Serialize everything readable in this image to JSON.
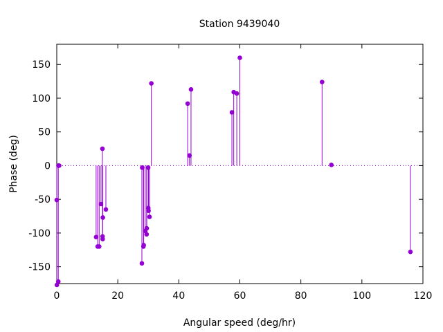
{
  "chart_data": {
    "type": "scatter",
    "title": "Station 9439040",
    "xlabel": "Angular speed (deg/hr)",
    "ylabel": "Phase (deg)",
    "xlim": [
      0,
      120
    ],
    "ylim": [
      -175,
      180
    ],
    "xticks": [
      0,
      20,
      40,
      60,
      80,
      100,
      120
    ],
    "yticks": [
      -150,
      -100,
      -50,
      0,
      50,
      100,
      150
    ],
    "grid": false,
    "zero_line": "dotted",
    "style": "impulses with point markers",
    "color": "#9400d3",
    "points": [
      {
        "x": 0.0,
        "y": -51
      },
      {
        "x": 0.04,
        "y": -177
      },
      {
        "x": 0.5,
        "y": -172
      },
      {
        "x": 0.55,
        "y": 0
      },
      {
        "x": 0.8,
        "y": 0
      },
      {
        "x": 12.9,
        "y": -106
      },
      {
        "x": 13.4,
        "y": -120
      },
      {
        "x": 13.9,
        "y": -120
      },
      {
        "x": 14.5,
        "y": -57
      },
      {
        "x": 14.96,
        "y": 25
      },
      {
        "x": 15.0,
        "y": -105
      },
      {
        "x": 15.04,
        "y": -109
      },
      {
        "x": 15.1,
        "y": -77
      },
      {
        "x": 16.1,
        "y": -65
      },
      {
        "x": 27.9,
        "y": -145
      },
      {
        "x": 28.0,
        "y": -3
      },
      {
        "x": 28.4,
        "y": -120
      },
      {
        "x": 28.5,
        "y": -118
      },
      {
        "x": 29.0,
        "y": -97
      },
      {
        "x": 29.5,
        "y": -93
      },
      {
        "x": 29.45,
        "y": -102
      },
      {
        "x": 29.96,
        "y": -3
      },
      {
        "x": 30.0,
        "y": -63
      },
      {
        "x": 30.08,
        "y": -67
      },
      {
        "x": 30.4,
        "y": -76
      },
      {
        "x": 31.0,
        "y": 122
      },
      {
        "x": 42.9,
        "y": 92
      },
      {
        "x": 43.5,
        "y": 15
      },
      {
        "x": 44.0,
        "y": 113
      },
      {
        "x": 57.4,
        "y": 79
      },
      {
        "x": 58.0,
        "y": 109
      },
      {
        "x": 59.0,
        "y": 107
      },
      {
        "x": 60.0,
        "y": 160
      },
      {
        "x": 86.95,
        "y": 124
      },
      {
        "x": 90.0,
        "y": 1
      },
      {
        "x": 115.9,
        "y": -128
      }
    ]
  }
}
